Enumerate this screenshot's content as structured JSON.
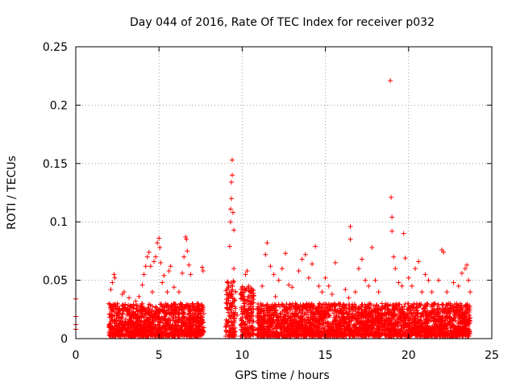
{
  "chart_data": {
    "type": "scatter",
    "title": "Day 044 of 2016, Rate Of TEC Index for receiver p032",
    "xlabel": "GPS time / hours",
    "ylabel": "ROTI / TECUs",
    "xlim": [
      0,
      25
    ],
    "ylim": [
      0,
      0.25
    ],
    "xticks": [
      0,
      5,
      10,
      15,
      20,
      25
    ],
    "xtick_labels": [
      "0",
      "5",
      "10",
      "15",
      "20",
      "25"
    ],
    "yticks": [
      0,
      0.05,
      0.1,
      0.15,
      0.2,
      0.25
    ],
    "ytick_labels": [
      "0",
      "0.05",
      "0.1",
      "0.15",
      "0.2",
      "0.25"
    ],
    "grid": true,
    "marker": "+",
    "marker_color": "#ff0000",
    "series": [
      {
        "name": "ROTI",
        "note": "dense cloud of points; representative sample of visible points",
        "points": [
          [
            0.0,
            0.034
          ],
          [
            0.0,
            0.019
          ],
          [
            0.0,
            0.012
          ],
          [
            0.0,
            0.008
          ],
          [
            2.0,
            0.01
          ],
          [
            2.0,
            0.03
          ],
          [
            2.1,
            0.042
          ],
          [
            2.2,
            0.048
          ],
          [
            2.3,
            0.055
          ],
          [
            2.35,
            0.052
          ],
          [
            2.1,
            0.005
          ],
          [
            2.3,
            0.015
          ],
          [
            2.5,
            0.008
          ],
          [
            2.6,
            0.022
          ],
          [
            2.8,
            0.038
          ],
          [
            2.9,
            0.04
          ],
          [
            3.0,
            0.012
          ],
          [
            3.2,
            0.035
          ],
          [
            3.3,
            0.028
          ],
          [
            3.5,
            0.01
          ],
          [
            3.6,
            0.032
          ],
          [
            3.8,
            0.036
          ],
          [
            4.0,
            0.046
          ],
          [
            4.1,
            0.055
          ],
          [
            4.2,
            0.062
          ],
          [
            4.3,
            0.07
          ],
          [
            4.4,
            0.074
          ],
          [
            4.5,
            0.062
          ],
          [
            4.6,
            0.04
          ],
          [
            4.7,
            0.066
          ],
          [
            4.8,
            0.07
          ],
          [
            4.9,
            0.082
          ],
          [
            5.0,
            0.086
          ],
          [
            5.05,
            0.078
          ],
          [
            5.1,
            0.065
          ],
          [
            5.2,
            0.048
          ],
          [
            5.3,
            0.054
          ],
          [
            5.5,
            0.04
          ],
          [
            5.6,
            0.058
          ],
          [
            5.7,
            0.062
          ],
          [
            5.9,
            0.044
          ],
          [
            6.0,
            0.025
          ],
          [
            6.2,
            0.04
          ],
          [
            6.4,
            0.056
          ],
          [
            6.5,
            0.07
          ],
          [
            6.6,
            0.087
          ],
          [
            6.65,
            0.085
          ],
          [
            6.7,
            0.075
          ],
          [
            6.8,
            0.063
          ],
          [
            6.9,
            0.055
          ],
          [
            7.0,
            0.03
          ],
          [
            7.2,
            0.025
          ],
          [
            7.3,
            0.03
          ],
          [
            7.5,
            0.018
          ],
          [
            7.6,
            0.061
          ],
          [
            7.65,
            0.058
          ],
          [
            9.0,
            0.01
          ],
          [
            9.1,
            0.03
          ],
          [
            9.2,
            0.045
          ],
          [
            9.25,
            0.079
          ],
          [
            9.3,
            0.1
          ],
          [
            9.3,
            0.111
          ],
          [
            9.35,
            0.12
          ],
          [
            9.35,
            0.134
          ],
          [
            9.4,
            0.153
          ],
          [
            9.4,
            0.14
          ],
          [
            9.45,
            0.108
          ],
          [
            9.5,
            0.093
          ],
          [
            9.5,
            0.06
          ],
          [
            9.6,
            0.04
          ],
          [
            9.7,
            0.02
          ],
          [
            10.0,
            0.035
          ],
          [
            10.2,
            0.055
          ],
          [
            10.3,
            0.058
          ],
          [
            10.4,
            0.045
          ],
          [
            10.5,
            0.03
          ],
          [
            10.6,
            0.015
          ],
          [
            10.8,
            0.008
          ],
          [
            11.0,
            0.022
          ],
          [
            11.2,
            0.045
          ],
          [
            11.4,
            0.072
          ],
          [
            11.5,
            0.082
          ],
          [
            11.7,
            0.062
          ],
          [
            11.9,
            0.055
          ],
          [
            12.0,
            0.036
          ],
          [
            12.2,
            0.05
          ],
          [
            12.4,
            0.06
          ],
          [
            12.6,
            0.073
          ],
          [
            12.8,
            0.046
          ],
          [
            13.0,
            0.044
          ],
          [
            13.2,
            0.03
          ],
          [
            13.4,
            0.058
          ],
          [
            13.6,
            0.068
          ],
          [
            13.8,
            0.072
          ],
          [
            14.0,
            0.052
          ],
          [
            14.2,
            0.064
          ],
          [
            14.4,
            0.079
          ],
          [
            14.6,
            0.045
          ],
          [
            14.8,
            0.04
          ],
          [
            15.0,
            0.052
          ],
          [
            15.2,
            0.045
          ],
          [
            15.4,
            0.038
          ],
          [
            15.6,
            0.065
          ],
          [
            15.8,
            0.03
          ],
          [
            16.0,
            0.025
          ],
          [
            16.2,
            0.042
          ],
          [
            16.4,
            0.035
          ],
          [
            16.5,
            0.096
          ],
          [
            16.5,
            0.085
          ],
          [
            16.8,
            0.04
          ],
          [
            17.0,
            0.06
          ],
          [
            17.2,
            0.068
          ],
          [
            17.4,
            0.05
          ],
          [
            17.6,
            0.045
          ],
          [
            17.8,
            0.078
          ],
          [
            18.0,
            0.05
          ],
          [
            18.2,
            0.04
          ],
          [
            18.4,
            0.03
          ],
          [
            18.6,
            0.02
          ],
          [
            18.9,
            0.221
          ],
          [
            18.95,
            0.121
          ],
          [
            19.0,
            0.104
          ],
          [
            19.0,
            0.092
          ],
          [
            19.1,
            0.07
          ],
          [
            19.2,
            0.06
          ],
          [
            19.4,
            0.048
          ],
          [
            19.6,
            0.045
          ],
          [
            19.7,
            0.09
          ],
          [
            19.8,
            0.069
          ],
          [
            20.0,
            0.052
          ],
          [
            20.2,
            0.045
          ],
          [
            20.4,
            0.06
          ],
          [
            20.6,
            0.066
          ],
          [
            20.8,
            0.04
          ],
          [
            21.0,
            0.055
          ],
          [
            21.2,
            0.05
          ],
          [
            21.4,
            0.04
          ],
          [
            21.6,
            0.03
          ],
          [
            21.8,
            0.05
          ],
          [
            22.0,
            0.076
          ],
          [
            22.1,
            0.074
          ],
          [
            22.3,
            0.04
          ],
          [
            22.5,
            0.03
          ],
          [
            22.7,
            0.048
          ],
          [
            22.9,
            0.03
          ],
          [
            23.0,
            0.045
          ],
          [
            23.2,
            0.056
          ],
          [
            23.4,
            0.06
          ],
          [
            23.5,
            0.063
          ],
          [
            23.6,
            0.05
          ],
          [
            23.7,
            0.04
          ]
        ]
      }
    ],
    "dense_band": {
      "note": "background fill of low values drawn as many small plus markers",
      "ranges": [
        [
          2.0,
          7.7,
          0.002,
          0.03
        ],
        [
          9.0,
          9.6,
          0.002,
          0.05
        ],
        [
          9.9,
          10.7,
          0.002,
          0.045
        ],
        [
          10.9,
          23.7,
          0.002,
          0.03
        ]
      ]
    }
  }
}
